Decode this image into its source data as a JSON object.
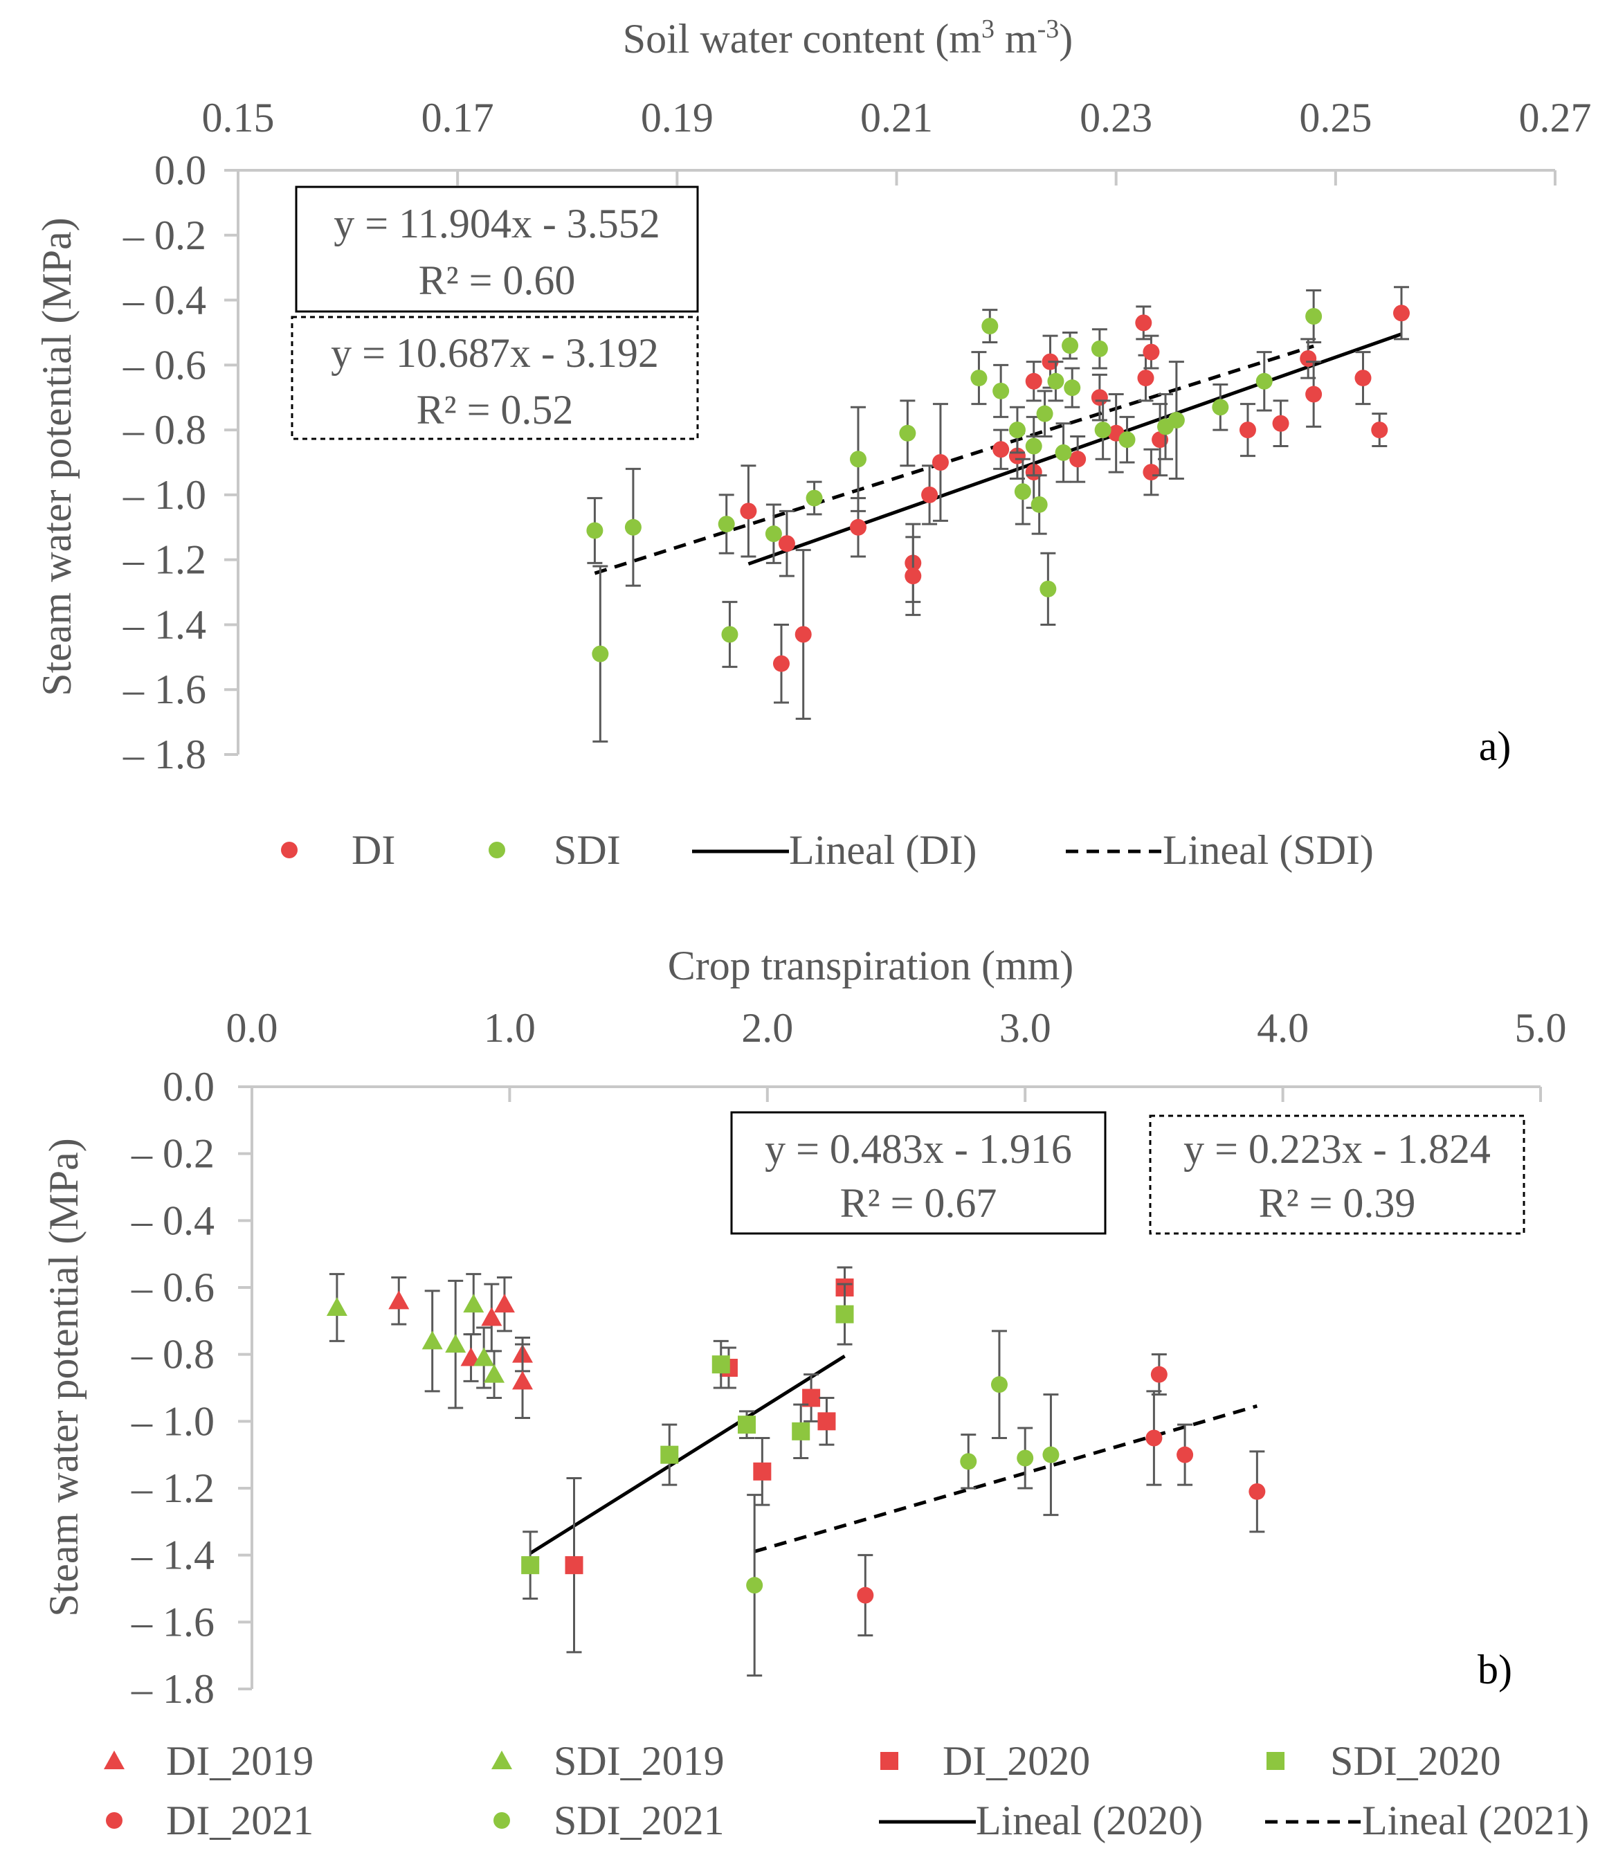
{
  "colors": {
    "di": "#e84545",
    "sdi": "#8dc63f",
    "axis": "#c8c8c8",
    "text": "#595959",
    "errorbar": "#595959",
    "trend": "#000000"
  },
  "chart_data": [
    {
      "type": "scatter",
      "panel_label": "a)",
      "xlabel": "Soil water content (m³ m⁻³)",
      "xlabel_main": "Soil water content (m",
      "xlabel_sup1": "3",
      "xlabel_mid": " m",
      "xlabel_sup2": "-3",
      "xlabel_end": ")",
      "ylabel": "Steam water potential (MPa)",
      "xlim": [
        0.15,
        0.27
      ],
      "ylim": [
        -1.8,
        0.0
      ],
      "xticks": [
        "0.15",
        "0.17",
        "0.19",
        "0.21",
        "0.23",
        "0.25",
        "0.27"
      ],
      "yticks": [
        "0.0",
        "– 0.2",
        "– 0.4",
        "– 0.6",
        "– 0.8",
        "– 1.0",
        "– 1.2",
        "– 1.4",
        "– 1.6",
        "– 1.8"
      ],
      "equations": [
        {
          "line1": "y = 11.904x - 3.552",
          "line2": "R² = 0.60",
          "style": "solid"
        },
        {
          "line1": "y = 10.687x - 3.192",
          "line2": "R² = 0.52",
          "style": "dashed"
        }
      ],
      "series": [
        {
          "name": "DI",
          "marker": "circle",
          "color_key": "di",
          "points": [
            [
              0.1965,
              -1.05,
              0.14
            ],
            [
              0.1995,
              -1.52,
              0.12
            ],
            [
              0.2,
              -1.15,
              0.1
            ],
            [
              0.2015,
              -1.43,
              0.26
            ],
            [
              0.2065,
              -1.1,
              0.09
            ],
            [
              0.2115,
              -1.21,
              0.12
            ],
            [
              0.2115,
              -1.25,
              0.12
            ],
            [
              0.213,
              -1.0,
              0.09
            ],
            [
              0.214,
              -0.9,
              0.18
            ],
            [
              0.2195,
              -0.86,
              0.06
            ],
            [
              0.221,
              -0.88,
              0.07
            ],
            [
              0.2225,
              -0.65,
              0.06
            ],
            [
              0.2225,
              -0.93,
              0.11
            ],
            [
              0.224,
              -0.59,
              0.08
            ],
            [
              0.2265,
              -0.89,
              0.07
            ],
            [
              0.2285,
              -0.7,
              0.07
            ],
            [
              0.23,
              -0.81,
              0.12
            ],
            [
              0.2325,
              -0.47,
              0.05
            ],
            [
              0.2327,
              -0.64,
              0.07
            ],
            [
              0.2332,
              -0.56,
              0.05
            ],
            [
              0.2332,
              -0.93,
              0.07
            ],
            [
              0.234,
              -0.83,
              0.11
            ],
            [
              0.242,
              -0.8,
              0.08
            ],
            [
              0.245,
              -0.78,
              0.07
            ],
            [
              0.2475,
              -0.58,
              0.06
            ],
            [
              0.248,
              -0.69,
              0.1
            ],
            [
              0.2525,
              -0.64,
              0.08
            ],
            [
              0.254,
              -0.8,
              0.05
            ],
            [
              0.256,
              -0.44,
              0.08
            ]
          ]
        },
        {
          "name": "SDI",
          "marker": "circle",
          "color_key": "sdi",
          "points": [
            [
              0.1825,
              -1.11,
              0.1
            ],
            [
              0.183,
              -1.49,
              0.27
            ],
            [
              0.186,
              -1.1,
              0.18
            ],
            [
              0.1945,
              -1.09,
              0.09
            ],
            [
              0.1948,
              -1.43,
              0.1
            ],
            [
              0.1988,
              -1.12,
              0.09
            ],
            [
              0.2025,
              -1.01,
              0.05
            ],
            [
              0.2065,
              -0.89,
              0.16
            ],
            [
              0.211,
              -0.81,
              0.1
            ],
            [
              0.2175,
              -0.64,
              0.08
            ],
            [
              0.2185,
              -0.48,
              0.05
            ],
            [
              0.2195,
              -0.68,
              0.08
            ],
            [
              0.221,
              -0.8,
              0.07
            ],
            [
              0.2215,
              -0.99,
              0.1
            ],
            [
              0.2225,
              -0.85,
              0.09
            ],
            [
              0.223,
              -1.03,
              0.09
            ],
            [
              0.2235,
              -0.75,
              0.07
            ],
            [
              0.2238,
              -1.29,
              0.11
            ],
            [
              0.2245,
              -0.65,
              0.06
            ],
            [
              0.2252,
              -0.87,
              0.09
            ],
            [
              0.2258,
              -0.54,
              0.04
            ],
            [
              0.226,
              -0.67,
              0.06
            ],
            [
              0.2285,
              -0.55,
              0.06
            ],
            [
              0.2288,
              -0.8,
              0.09
            ],
            [
              0.231,
              -0.83,
              0.07
            ],
            [
              0.2345,
              -0.79,
              0.1
            ],
            [
              0.2355,
              -0.77,
              0.18
            ],
            [
              0.2395,
              -0.73,
              0.07
            ],
            [
              0.2435,
              -0.65,
              0.09
            ],
            [
              0.248,
              -0.45,
              0.08
            ]
          ]
        }
      ],
      "trendlines": [
        {
          "name": "Lineal (DI)",
          "style": "solid",
          "slope": 11.904,
          "intercept": -3.552,
          "x_range": [
            0.1965,
            0.256
          ]
        },
        {
          "name": "Lineal (SDI)",
          "style": "dashed",
          "slope": 10.687,
          "intercept": -3.192,
          "x_range": [
            0.1825,
            0.248
          ]
        }
      ],
      "legend": [
        {
          "label": "DI",
          "kind": "circle",
          "color_key": "di"
        },
        {
          "label": "SDI",
          "kind": "circle",
          "color_key": "sdi"
        },
        {
          "label": "Lineal (DI)",
          "kind": "solid"
        },
        {
          "label": "Lineal (SDI)",
          "kind": "dashed"
        }
      ]
    },
    {
      "type": "scatter",
      "panel_label": "b)",
      "xlabel": "Crop transpiration (mm)",
      "ylabel": "Steam water potential (MPa)",
      "xlim": [
        0.0,
        5.0
      ],
      "ylim": [
        -1.8,
        0.0
      ],
      "xticks": [
        "0.0",
        "1.0",
        "2.0",
        "3.0",
        "4.0",
        "5.0"
      ],
      "yticks": [
        "0.0",
        "– 0.2",
        "– 0.4",
        "– 0.6",
        "– 0.8",
        "– 1.0",
        "– 1.2",
        "– 1.4",
        "– 1.6",
        "– 1.8"
      ],
      "equations": [
        {
          "line1": "y = 0.483x - 1.916",
          "line2": "R² = 0.67",
          "style": "solid"
        },
        {
          "line1": "y = 0.223x - 1.824",
          "line2": "R² = 0.39",
          "style": "dashed"
        }
      ],
      "series": [
        {
          "name": "DI_2019",
          "marker": "triangle",
          "color_key": "di",
          "points": [
            [
              0.57,
              -0.64,
              0.07
            ],
            [
              0.85,
              -0.81,
              0.07
            ],
            [
              0.93,
              -0.69,
              0.1
            ],
            [
              0.98,
              -0.65,
              0.08
            ],
            [
              1.05,
              -0.8,
              0.05
            ],
            [
              1.05,
              -0.88,
              0.11
            ]
          ]
        },
        {
          "name": "SDI_2019",
          "marker": "triangle",
          "color_key": "sdi",
          "points": [
            [
              0.33,
              -0.66,
              0.1
            ],
            [
              0.7,
              -0.76,
              0.15
            ],
            [
              0.79,
              -0.77,
              0.19
            ],
            [
              0.86,
              -0.65,
              0.09
            ],
            [
              0.9,
              -0.81,
              0.09
            ],
            [
              0.94,
              -0.86,
              0.07
            ]
          ]
        },
        {
          "name": "DI_2020",
          "marker": "square",
          "color_key": "di",
          "points": [
            [
              1.25,
              -1.43,
              0.26
            ],
            [
              1.85,
              -0.84,
              0.06
            ],
            [
              1.98,
              -1.15,
              0.1
            ],
            [
              2.17,
              -0.93,
              0.07
            ],
            [
              2.23,
              -1.0,
              0.07
            ],
            [
              2.3,
              -0.6,
              0.06
            ]
          ]
        },
        {
          "name": "SDI_2020",
          "marker": "square",
          "color_key": "sdi",
          "points": [
            [
              1.08,
              -1.43,
              0.1
            ],
            [
              1.62,
              -1.1,
              0.09
            ],
            [
              1.82,
              -0.83,
              0.07
            ],
            [
              1.92,
              -1.01,
              0.04
            ],
            [
              2.13,
              -1.03,
              0.08
            ],
            [
              2.3,
              -0.68,
              0.09
            ]
          ]
        },
        {
          "name": "DI_2021",
          "marker": "circle",
          "color_key": "di",
          "points": [
            [
              2.38,
              -1.52,
              0.12
            ],
            [
              3.5,
              -1.05,
              0.14
            ],
            [
              3.52,
              -0.86,
              0.06
            ],
            [
              3.62,
              -1.1,
              0.09
            ],
            [
              3.9,
              -1.21,
              0.12
            ]
          ]
        },
        {
          "name": "SDI_2021",
          "marker": "circle",
          "color_key": "sdi",
          "points": [
            [
              1.95,
              -1.49,
              0.27
            ],
            [
              2.78,
              -1.12,
              0.08
            ],
            [
              2.9,
              -0.89,
              0.16
            ],
            [
              3.0,
              -1.11,
              0.09
            ],
            [
              3.1,
              -1.1,
              0.18
            ]
          ]
        }
      ],
      "trendlines": [
        {
          "name": "Lineal (2020)",
          "style": "solid",
          "slope": 0.483,
          "intercept": -1.916,
          "x_range": [
            1.08,
            2.3
          ]
        },
        {
          "name": "Lineal (2021)",
          "style": "dashed",
          "slope": 0.223,
          "intercept": -1.824,
          "x_range": [
            1.95,
            3.9
          ]
        }
      ],
      "legend": [
        {
          "label": "DI_2019",
          "kind": "triangle",
          "color_key": "di"
        },
        {
          "label": "SDI_2019",
          "kind": "triangle",
          "color_key": "sdi"
        },
        {
          "label": "DI_2020",
          "kind": "square",
          "color_key": "di"
        },
        {
          "label": "SDI_2020",
          "kind": "square",
          "color_key": "sdi"
        },
        {
          "label": "DI_2021",
          "kind": "circle",
          "color_key": "di"
        },
        {
          "label": "SDI_2021",
          "kind": "circle",
          "color_key": "sdi"
        },
        {
          "label": "Lineal (2020)",
          "kind": "solid"
        },
        {
          "label": "Lineal (2021)",
          "kind": "dashed"
        }
      ]
    }
  ]
}
